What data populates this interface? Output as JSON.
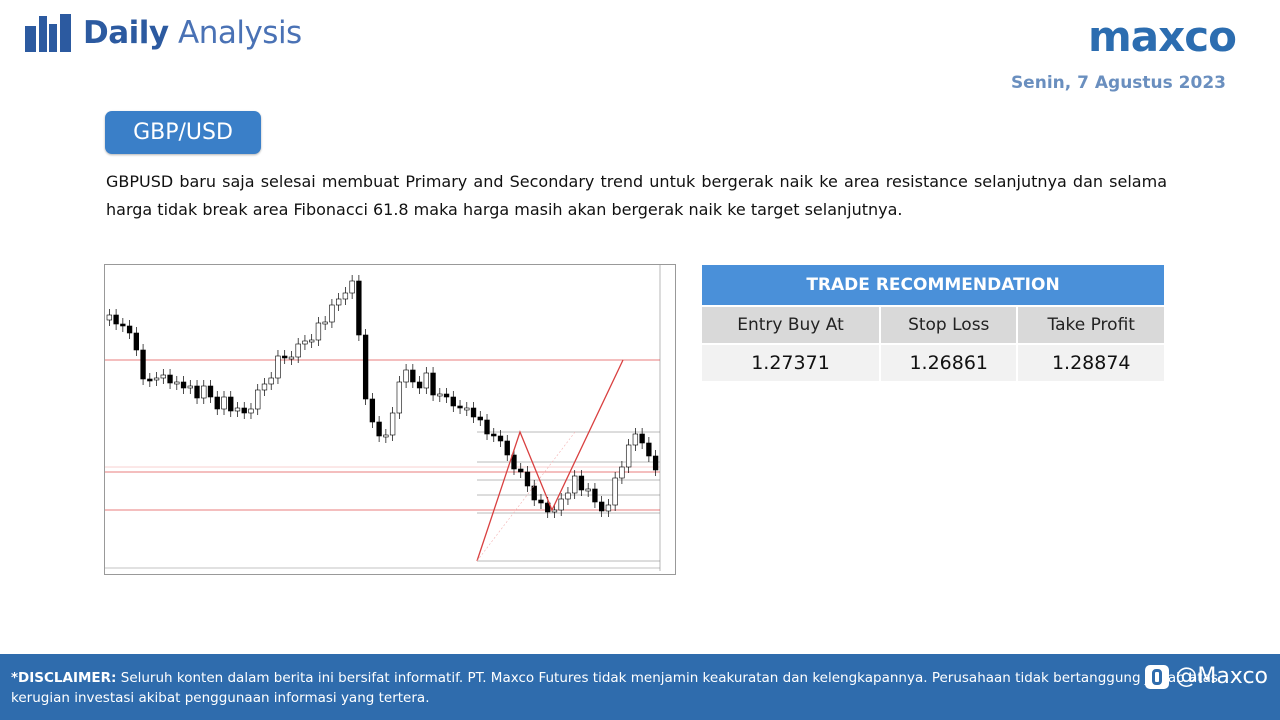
{
  "header": {
    "title_bold": "Daily",
    "title_light": "Analysis",
    "brand": "maxco",
    "date": "Senin, 7 Agustus 2023"
  },
  "pair": "GBP/USD",
  "description": "GBPUSD baru saja selesai membuat Primary and Secondary trend untuk bergerak naik ke area resistance selanjutnya dan selama harga tidak break area Fibonacci 61.8 maka harga masih akan bergerak naik ke target selanjutnya.",
  "recommendation": {
    "title": "TRADE RECOMMENDATION",
    "columns": [
      "Entry Buy At",
      "Stop Loss",
      "Take Profit"
    ],
    "values": [
      "1.27371",
      "1.26861",
      "1.28874"
    ]
  },
  "footer": {
    "disclaimer_label": "*DISCLAIMER:",
    "disclaimer_text": " Seluruh konten dalam berita ini bersifat informatif. PT. Maxco Futures tidak menjamin keakuratan dan kelengkapannya. Perusahaan tidak bertanggung jawab atas kerugian investasi akibat penggunaan informasi yang tertera.",
    "social_handle": "@Maxco"
  },
  "colors": {
    "brand_blue": "#2c6db0",
    "badge_blue": "#3a7fc8",
    "table_header": "#4a90d9",
    "footer_blue": "#2f6cad",
    "resistance_line": "#e05050"
  },
  "icons": [
    "bar-chart-icon",
    "chat-bubble-icon"
  ]
}
